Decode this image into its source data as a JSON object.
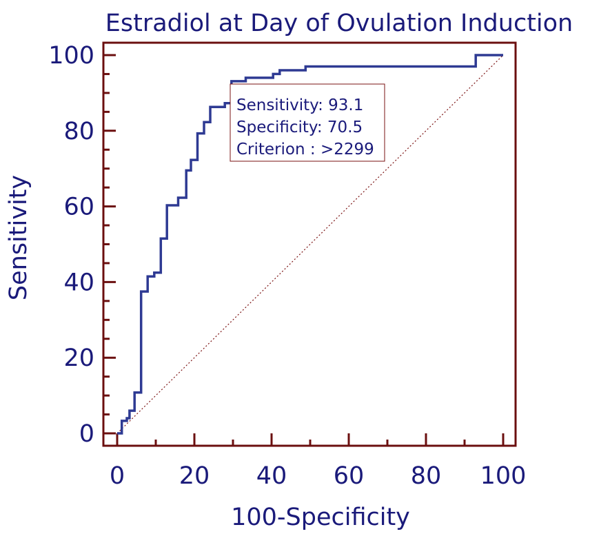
{
  "chart_data": {
    "type": "line",
    "title": "Estradiol at Day of Ovulation Induction",
    "xlabel": "100-Specificity",
    "ylabel": "Sensitivity",
    "xlim": [
      -4,
      103
    ],
    "ylim": [
      -3,
      100
    ],
    "xticks": [
      0,
      20,
      40,
      60,
      80,
      100
    ],
    "yticks": [
      0,
      20,
      40,
      60,
      80,
      100
    ],
    "grid": false,
    "colors": {
      "roc": "#2e3a93",
      "diagonal": "#7a1010",
      "frame": "#6b0f0f",
      "text": "#1a1a7a"
    },
    "series": [
      {
        "values": [
          [
            0,
            0
          ],
          [
            1.2,
            0
          ],
          [
            1.2,
            3.3
          ],
          [
            2.5,
            3.3
          ],
          [
            2.5,
            4.0
          ],
          [
            3.2,
            4.0
          ],
          [
            3.2,
            6.0
          ],
          [
            4.5,
            6.0
          ],
          [
            4.5,
            10.8
          ],
          [
            6.2,
            10.8
          ],
          [
            6.2,
            37.5
          ],
          [
            7.9,
            37.5
          ],
          [
            7.9,
            41.5
          ],
          [
            9.6,
            41.5
          ],
          [
            9.6,
            42.5
          ],
          [
            11.3,
            42.5
          ],
          [
            11.3,
            51.5
          ],
          [
            12.9,
            51.5
          ],
          [
            12.9,
            60.3
          ],
          [
            15.8,
            60.3
          ],
          [
            15.8,
            62.3
          ],
          [
            17.9,
            62.3
          ],
          [
            17.9,
            69.5
          ],
          [
            19.1,
            69.5
          ],
          [
            19.1,
            72.3
          ],
          [
            20.8,
            72.3
          ],
          [
            20.8,
            79.3
          ],
          [
            22.5,
            79.3
          ],
          [
            22.5,
            82.3
          ],
          [
            24.1,
            82.3
          ],
          [
            24.1,
            86.3
          ],
          [
            27.9,
            86.3
          ],
          [
            27.9,
            87.3
          ],
          [
            29.6,
            87.3
          ],
          [
            29.6,
            93.1
          ],
          [
            33.3,
            93.1
          ],
          [
            33.3,
            94.0
          ],
          [
            40.4,
            94.0
          ],
          [
            40.4,
            95.0
          ],
          [
            42.1,
            95.0
          ],
          [
            42.1,
            96.0
          ],
          [
            48.8,
            96.0
          ],
          [
            48.8,
            97.0
          ],
          [
            92.9,
            97.0
          ],
          [
            92.9,
            100
          ],
          [
            100,
            100
          ]
        ]
      },
      {
        "values": [
          [
            0,
            0
          ],
          [
            100,
            100
          ]
        ]
      }
    ],
    "annotations": [
      "Sensitivity: 93.1",
      "Specificity: 70.5",
      "Criterion : >2299"
    ]
  }
}
